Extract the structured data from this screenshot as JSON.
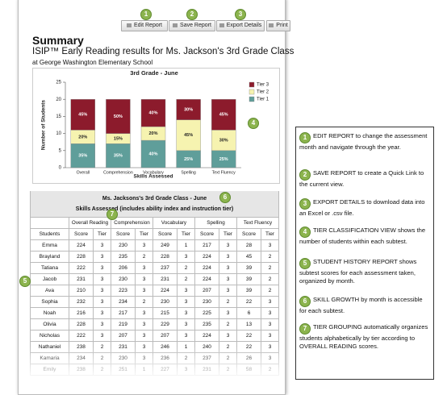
{
  "toolbar": {
    "buttons": [
      "Edit Report",
      "Save Report",
      "Export Details",
      "Print"
    ]
  },
  "report": {
    "title": "Summary",
    "subtitle": "ISIP™ Early Reading results for Ms. Jackson's 3rd Grade Class",
    "school": "at George Washington Elementary School"
  },
  "chart_data": {
    "type": "bar",
    "stacked": true,
    "title": "3rd Grade - June",
    "y_label": "Number of Students",
    "x_label": "Skills Assessed",
    "categories": [
      "Overall",
      "Comprehension",
      "Vocabulary",
      "Spelling",
      "Text Fluency"
    ],
    "series": [
      {
        "name": "Tier 1",
        "color": "#5f9e9a",
        "values": [
          7,
          7,
          8,
          5,
          5
        ],
        "value_labels": [
          "35%",
          "35%",
          "40%",
          "25%",
          "25%"
        ]
      },
      {
        "name": "Tier 2",
        "color": "#f6f3b0",
        "values": [
          4,
          3,
          4,
          9,
          6
        ],
        "value_labels": [
          "20%",
          "15%",
          "20%",
          "45%",
          "30%"
        ]
      },
      {
        "name": "Tier 3",
        "color": "#8c1b2c",
        "values": [
          9,
          10,
          8,
          6,
          9
        ],
        "value_labels": [
          "45%",
          "50%",
          "40%",
          "30%",
          "45%"
        ]
      }
    ],
    "ylim": [
      0,
      25
    ],
    "yticks": [
      0,
      5,
      10,
      15,
      20,
      25
    ],
    "grid": false,
    "legend_position": "right"
  },
  "table": {
    "title": "Ms. Jacksons's 3rd Grade Class - June",
    "subtitle": "Skills Assessed (includes ability index and instruction tier)",
    "groups": [
      "Overall Reading",
      "Comprehension",
      "Vocabulary",
      "Spelling",
      "Text Fluency"
    ],
    "subheaders": [
      "Students",
      "Score",
      "Tier",
      "Score",
      "Tier",
      "Score",
      "Tier",
      "Score",
      "Tier",
      "Score",
      "Tier"
    ],
    "rows": [
      [
        "Emma",
        224,
        3,
        230,
        3,
        249,
        1,
        217,
        3,
        28,
        3
      ],
      [
        "Brayland",
        228,
        3,
        235,
        2,
        228,
        3,
        224,
        3,
        45,
        2
      ],
      [
        "Tatiana",
        222,
        3,
        206,
        3,
        237,
        2,
        224,
        3,
        39,
        2
      ],
      [
        "Jacob",
        231,
        3,
        230,
        3,
        231,
        2,
        224,
        3,
        39,
        2
      ],
      [
        "Ava",
        210,
        3,
        223,
        3,
        224,
        3,
        207,
        3,
        39,
        2
      ],
      [
        "Sophia",
        232,
        3,
        234,
        2,
        230,
        3,
        230,
        2,
        22,
        3
      ],
      [
        "Noah",
        216,
        3,
        217,
        3,
        215,
        3,
        225,
        3,
        6,
        3
      ],
      [
        "Olivia",
        228,
        3,
        219,
        3,
        229,
        3,
        235,
        2,
        13,
        3
      ],
      [
        "Nicholas",
        222,
        3,
        207,
        3,
        207,
        3,
        224,
        3,
        22,
        3
      ],
      [
        "Nathaniel",
        238,
        2,
        231,
        3,
        246,
        1,
        240,
        2,
        22,
        3
      ],
      [
        "Kamaria",
        234,
        2,
        230,
        3,
        236,
        2,
        237,
        2,
        26,
        3
      ],
      [
        "Emily",
        238,
        2,
        251,
        1,
        227,
        3,
        231,
        2,
        58,
        2
      ]
    ]
  },
  "callouts": [
    {
      "number": "1",
      "lead": "EDIT REPORT",
      "text": "to change the assessment month and navigate through the year."
    },
    {
      "number": "2",
      "lead": "SAVE REPORT",
      "text": "to create a Quick Link to the current view."
    },
    {
      "number": "3",
      "lead": "EXPORT DETAILS",
      "text": "to download data into an Excel or .csv file."
    },
    {
      "number": "4",
      "lead": "TIER CLASSIFICATION VIEW",
      "text": "shows the number of students within each subtest."
    },
    {
      "number": "5",
      "lead": "STUDENT HISTORY REPORT",
      "text": "shows subtest scores for each assessment taken, organized by month."
    },
    {
      "number": "6",
      "lead": "SKILL GROWTH",
      "text": "by month is accessible for each subtest."
    },
    {
      "number": "7",
      "lead": "TIER GROUPING",
      "text": "automatically organizes students alphabetically by tier according to OVERALL READING scores."
    }
  ]
}
